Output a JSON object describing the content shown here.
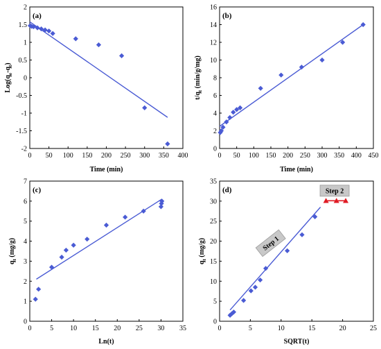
{
  "chart_data": [
    {
      "type": "scatter",
      "label": "(a)",
      "xlabel": "Time (min)",
      "ylabel": "Log(qe-qt)",
      "ylabel_parts": {
        "main": "Log(q",
        "sub1": "e",
        "mid": "-q",
        "sub2": "t",
        "end": ")"
      },
      "xlim": [
        0,
        400
      ],
      "ylim": [
        -2,
        2
      ],
      "xticks": [
        0,
        50,
        100,
        150,
        200,
        250,
        300,
        350,
        400
      ],
      "yticks": [
        -2,
        -1.5,
        -1,
        -0.5,
        0,
        0.5,
        1,
        1.5,
        2
      ],
      "yticklabels": [
        "-2",
        "-1.5",
        "-1",
        "-0.5",
        "0",
        "0.5",
        "1",
        "1.5",
        "2"
      ],
      "marker": "diamond",
      "color": "#4a5bd4",
      "points": [
        [
          1,
          1.47
        ],
        [
          5,
          1.45
        ],
        [
          10,
          1.44
        ],
        [
          20,
          1.41
        ],
        [
          30,
          1.38
        ],
        [
          40,
          1.35
        ],
        [
          50,
          1.32
        ],
        [
          60,
          1.25
        ],
        [
          120,
          1.1
        ],
        [
          180,
          0.93
        ],
        [
          240,
          0.62
        ],
        [
          300,
          -0.85
        ],
        [
          360,
          -1.87
        ]
      ],
      "fit": [
        [
          0,
          1.58
        ],
        [
          360,
          -1.12
        ]
      ]
    },
    {
      "type": "scatter",
      "label": "(b)",
      "xlabel": "Time (min)",
      "ylabel": "t/qt (min/g/mg)",
      "ylabel_parts": {
        "main": "t/q",
        "sub1": "t",
        "end": " (min/g/mg)"
      },
      "xlim": [
        0,
        450
      ],
      "ylim": [
        0,
        16
      ],
      "xticks": [
        0,
        50,
        100,
        150,
        200,
        250,
        300,
        350,
        400,
        450
      ],
      "yticks": [
        0,
        2,
        4,
        6,
        8,
        10,
        12,
        14,
        16
      ],
      "yticklabels": [
        "0",
        "2",
        "4",
        "6",
        "8",
        "10",
        "12",
        "14",
        "16"
      ],
      "marker": "diamond",
      "color": "#4a5bd4",
      "points": [
        [
          2,
          1.8
        ],
        [
          5,
          2.0
        ],
        [
          10,
          2.4
        ],
        [
          20,
          3.0
        ],
        [
          30,
          3.5
        ],
        [
          40,
          4.1
        ],
        [
          50,
          4.4
        ],
        [
          60,
          4.6
        ],
        [
          120,
          6.8
        ],
        [
          180,
          8.3
        ],
        [
          240,
          9.2
        ],
        [
          300,
          10.0
        ],
        [
          360,
          12.0
        ],
        [
          420,
          14.0
        ]
      ],
      "fit": [
        [
          0,
          2.5
        ],
        [
          420,
          14.0
        ]
      ]
    },
    {
      "type": "scatter",
      "label": "(c)",
      "xlabel": "Ln(t)",
      "ylabel": "qt (mg/g)",
      "ylabel_parts": {
        "main": "q",
        "sub1": "t",
        "end": " (mg/g)"
      },
      "xlim": [
        0,
        35
      ],
      "ylim": [
        0,
        7
      ],
      "xticks": [
        0,
        5,
        10,
        15,
        20,
        25,
        30,
        35
      ],
      "yticks": [
        0,
        1,
        2,
        3,
        4,
        5,
        6,
        7
      ],
      "yticklabels": [
        "0",
        "1",
        "2",
        "3",
        "4",
        "5",
        "6",
        "7"
      ],
      "marker": "diamond",
      "color": "#4a5bd4",
      "points": [
        [
          1.3,
          1.1
        ],
        [
          2.0,
          1.6
        ],
        [
          5.0,
          2.7
        ],
        [
          7.3,
          3.2
        ],
        [
          8.3,
          3.55
        ],
        [
          10.0,
          3.8
        ],
        [
          13.1,
          4.1
        ],
        [
          17.5,
          4.8
        ],
        [
          21.8,
          5.2
        ],
        [
          26.0,
          5.5
        ],
        [
          30.0,
          5.72
        ],
        [
          30.1,
          5.88
        ],
        [
          30.2,
          6.0
        ]
      ],
      "fit": [
        [
          1.5,
          2.1
        ],
        [
          30.2,
          6.1
        ]
      ]
    },
    {
      "type": "scatter",
      "label": "(d)",
      "xlabel": "SQRT(t)",
      "ylabel": "qt (mg/g)",
      "ylabel_parts": {
        "main": "q",
        "sub1": "t",
        "end": " (mg/g)"
      },
      "xlim": [
        0,
        25
      ],
      "ylim": [
        0,
        35
      ],
      "xticks": [
        0,
        5,
        10,
        15,
        20,
        25
      ],
      "yticks": [
        0,
        5,
        10,
        15,
        20,
        25,
        30,
        35
      ],
      "yticklabels": [
        "0",
        "5",
        "10",
        "15",
        "20",
        "25",
        "30",
        "35"
      ],
      "marker": "diamond",
      "color": "#4a5bd4",
      "points": [
        [
          1.7,
          1.5
        ],
        [
          2.0,
          1.9
        ],
        [
          2.3,
          2.3
        ],
        [
          3.9,
          5.2
        ],
        [
          5.1,
          7.6
        ],
        [
          5.8,
          8.5
        ],
        [
          6.6,
          10.3
        ],
        [
          7.5,
          13.2
        ],
        [
          11.0,
          17.6
        ],
        [
          13.4,
          21.6
        ],
        [
          15.5,
          26.1
        ]
      ],
      "fit": [
        [
          1.7,
          2.8
        ],
        [
          16.4,
          28.5
        ]
      ],
      "series2": {
        "marker": "triangle",
        "color": "#e01b24",
        "points": [
          [
            17.3,
            30.1
          ],
          [
            19.0,
            30.1
          ],
          [
            20.5,
            30.1
          ]
        ],
        "fit": [
          [
            17.3,
            30.1
          ],
          [
            20.5,
            30.1
          ]
        ]
      },
      "annotations": [
        {
          "text": "Step 1",
          "x": 8.3,
          "y": 19.5,
          "rotate": -38
        },
        {
          "text": "Step 2",
          "x": 18.7,
          "y": 32.6,
          "rotate": 0
        }
      ]
    }
  ]
}
